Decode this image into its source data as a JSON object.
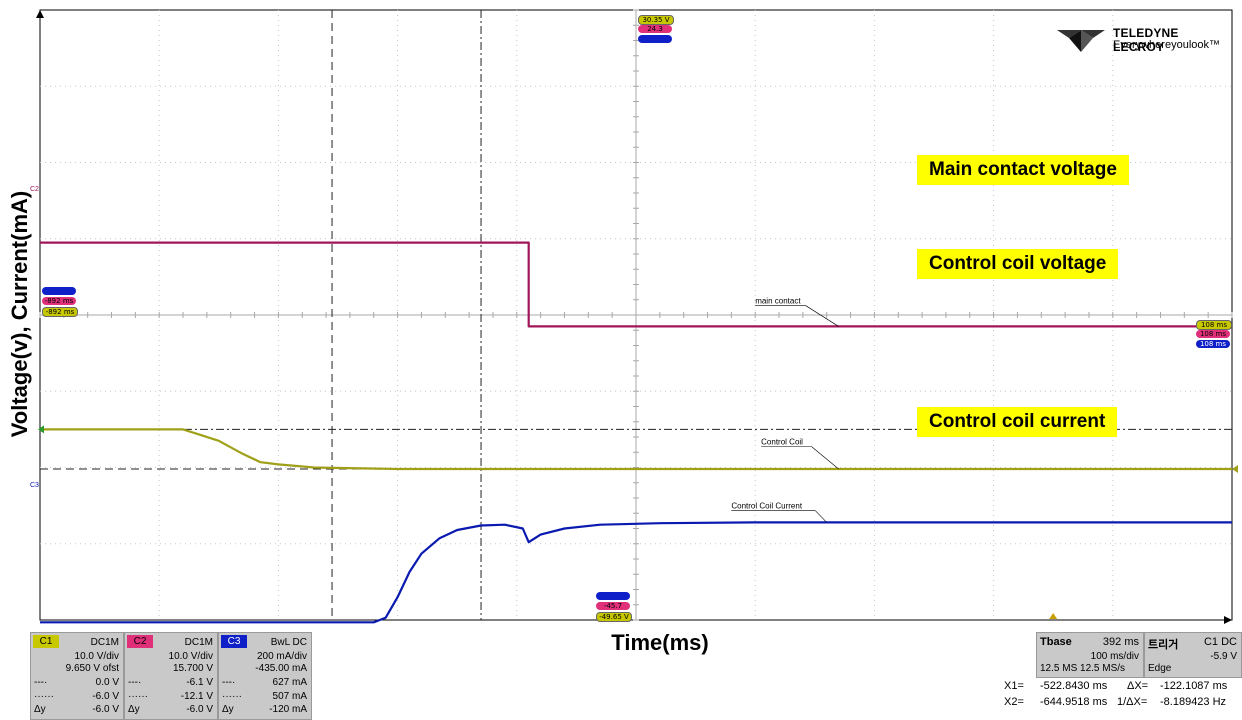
{
  "chart_data": {
    "type": "line",
    "xlabel": "Time(ms)",
    "ylabel": "Voltage(v), Current(mA)",
    "grid": true,
    "series": [
      {
        "name": "main contact",
        "color": "#a0145a",
        "points": [
          [
            0,
            4.95
          ],
          [
            4.1,
            4.95
          ],
          [
            4.1,
            3.85
          ],
          [
            10,
            3.85
          ]
        ]
      },
      {
        "name": "Control Coil",
        "color": "#a0a018",
        "points": [
          [
            0,
            2.5
          ],
          [
            1.2,
            2.5
          ],
          [
            1.3,
            2.45
          ],
          [
            1.5,
            2.35
          ],
          [
            1.7,
            2.18
          ],
          [
            1.85,
            2.07
          ],
          [
            2.0,
            2.04
          ],
          [
            2.3,
            2.0
          ],
          [
            3.0,
            1.98
          ],
          [
            10,
            1.98
          ]
        ]
      },
      {
        "name": "Control Coil Current",
        "color": "#0a1ab0",
        "points": [
          [
            0,
            -0.03
          ],
          [
            2.8,
            -0.03
          ],
          [
            2.9,
            0.03
          ],
          [
            3.0,
            0.3
          ],
          [
            3.1,
            0.63
          ],
          [
            3.2,
            0.87
          ],
          [
            3.35,
            1.07
          ],
          [
            3.5,
            1.18
          ],
          [
            3.7,
            1.24
          ],
          [
            3.9,
            1.25
          ],
          [
            4.05,
            1.2
          ],
          [
            4.1,
            1.02
          ],
          [
            4.2,
            1.12
          ],
          [
            4.4,
            1.2
          ],
          [
            4.7,
            1.25
          ],
          [
            5.2,
            1.27
          ],
          [
            6.0,
            1.28
          ],
          [
            10,
            1.28
          ]
        ]
      }
    ],
    "cursors": [
      2.45,
      3.7
    ],
    "series_labels": [
      "main contact",
      "Control Coil",
      "Control Coil Current"
    ]
  },
  "annotations": {
    "main": "Main contact voltage",
    "coil_v": "Control coil voltage",
    "coil_i": "Control coil current"
  },
  "logo": {
    "brand": "TELEDYNE LECROY",
    "tagline": "Everywhereyoulook™"
  },
  "chips": {
    "top_yellow": "30.35 V",
    "top_pink": "24.3",
    "top_blue": "",
    "left_blue": "",
    "left_pink": "-892 ms",
    "left_yellow": "-892 ms",
    "right_yellow": "108 ms",
    "right_pink": "108 ms",
    "right_blue": "108 ms",
    "bottom_blue": "",
    "bottom_pink": "-45.7",
    "bottom_yellow": "-49.65 V",
    "c2_marker": "C2",
    "c3_marker": "C3"
  },
  "channels": [
    {
      "tag": "C1",
      "tag_color": "#c8c800",
      "coupling": "DC1M",
      "scale": "10.0 V/div",
      "offset": "9.650 V ofst",
      "cursor1": "0.0 V",
      "cursor2": "-6.0 V",
      "delta": "-6.0 V"
    },
    {
      "tag": "C2",
      "tag_color": "#e0307a",
      "coupling": "DC1M",
      "scale": "10.0 V/div",
      "offset": "15.700 V",
      "cursor1": "-6.1 V",
      "cursor2": "-12.1 V",
      "delta": "-6.0 V"
    },
    {
      "tag": "C3",
      "tag_color": "#1020c8",
      "coupling": "BwL DC",
      "scale": "200 mA/div",
      "offset": "-435.00 mA",
      "cursor1": "627 mA",
      "cursor2": "507 mA",
      "delta": "-120 mA"
    }
  ],
  "cursor_symbols": {
    "c1": "---·",
    "c2": "······",
    "delta": "Δy"
  },
  "tbase": {
    "label": "Tbase",
    "value": "392 ms",
    "div": "100 ms/div",
    "rate": "12.5 MS  12.5 MS/s"
  },
  "trigger": {
    "label": "트리거",
    "channel": "C1 DC",
    "level": "-5.9 V",
    "type": "Edge"
  },
  "measurements": {
    "x1_label": "X1=",
    "x1": "-522.8430 ms",
    "dx_label": "ΔX=",
    "dx": "-122.1087 ms",
    "x2_label": "X2=",
    "x2": "-644.9518 ms",
    "inv_label": "1/ΔX=",
    "inv": "-8.189423 Hz"
  }
}
